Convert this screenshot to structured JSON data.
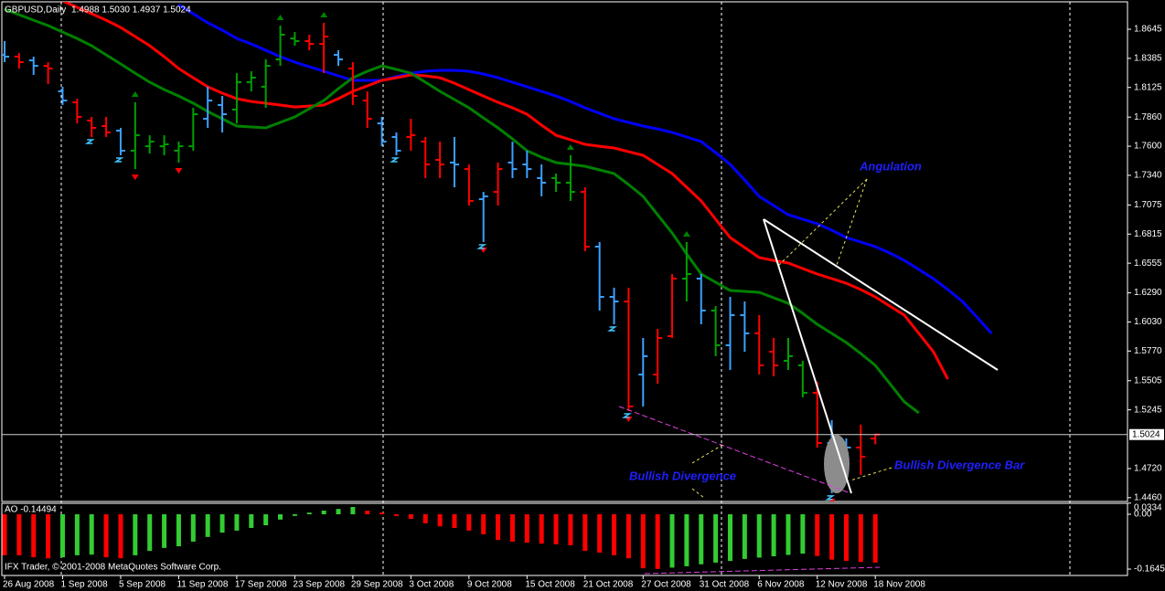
{
  "chart_data": {
    "type": "ohlc",
    "title": "GBPUSD,Daily",
    "subtitle": "1.4988 1.5030 1.4937 1.5024",
    "categories": [
      "26 Aug 2008",
      null,
      null,
      null,
      "1 Sep 2008",
      null,
      null,
      null,
      "5 Sep 2008",
      null,
      null,
      null,
      "11 Sep 2008",
      null,
      null,
      null,
      "17 Sep 2008",
      null,
      null,
      null,
      "23 Sep 2008",
      null,
      null,
      null,
      "29 Sep 2008",
      null,
      null,
      null,
      "3 Oct 2008",
      null,
      null,
      null,
      "9 Oct 2008",
      null,
      null,
      null,
      "15 Oct 2008",
      null,
      null,
      null,
      "21 Oct 2008",
      null,
      null,
      null,
      "27 Oct 2008",
      null,
      null,
      null,
      "31 Oct 2008",
      null,
      null,
      null,
      "6 Nov 2008",
      null,
      null,
      null,
      "12 Nov 2008",
      null,
      null,
      null,
      "18 Nov 2008",
      null,
      null,
      null,
      null,
      null,
      null,
      null,
      null
    ],
    "open": [
      1.8416,
      1.84,
      1.8367,
      1.8318,
      1.809,
      1.7992,
      1.7829,
      1.778,
      1.7739,
      1.756,
      1.76,
      1.76,
      1.756,
      1.76,
      1.7845,
      1.7968,
      1.7927,
      1.8172,
      1.8131,
      1.8376,
      1.8563,
      1.8539,
      1.8514,
      1.8416,
      1.8294,
      1.8008,
      1.7804,
      1.7682,
      1.7682,
      1.7641,
      1.7478,
      1.7454,
      1.7396,
      1.7127,
      1.7192,
      1.7454,
      1.7437,
      1.7315,
      1.7315,
      1.7274,
      1.7192,
      1.6703,
      1.6254,
      1.6213,
      1.556,
      1.556,
      1.5903,
      1.6417,
      1.6417,
      1.6132,
      1.5822,
      1.6091,
      1.5928,
      1.5764,
      1.5683,
      1.5642,
      1.5397,
      1.4948,
      1.4744,
      1.4908,
      1.4988,
      null,
      null,
      null,
      null,
      null,
      null,
      null,
      null
    ],
    "high": [
      1.8539,
      1.8433,
      1.84,
      1.8351,
      1.8131,
      1.8025,
      1.7862,
      1.7862,
      1.7764,
      1.7992,
      1.7698,
      1.7698,
      1.7641,
      1.7943,
      1.8131,
      1.8049,
      1.8253,
      1.827,
      1.8376,
      1.8678,
      1.862,
      1.8596,
      1.8702,
      1.8457,
      1.8351,
      1.809,
      1.7862,
      1.7723,
      1.7845,
      1.7682,
      1.7641,
      1.7682,
      1.7437,
      1.7192,
      1.7454,
      1.7641,
      1.756,
      1.7437,
      1.7356,
      1.7519,
      1.7233,
      1.6744,
      1.6336,
      1.6336,
      1.5887,
      1.5968,
      1.6458,
      1.6744,
      1.6458,
      1.6172,
      1.6254,
      1.6213,
      1.6091,
      1.5887,
      1.5887,
      1.5683,
      1.5495,
      1.5152,
      1.499,
      1.5112,
      1.503,
      null,
      null,
      null,
      null,
      null,
      null,
      null,
      null
    ],
    "low": [
      1.8351,
      1.8294,
      1.8237,
      1.8155,
      1.7968,
      1.7804,
      1.7682,
      1.7682,
      1.7519,
      1.7396,
      1.7535,
      1.7519,
      1.7454,
      1.756,
      1.7764,
      1.7723,
      1.7804,
      1.809,
      1.7943,
      1.8318,
      1.8498,
      1.8457,
      1.8253,
      1.8318,
      1.7968,
      1.7764,
      1.76,
      1.7519,
      1.756,
      1.7315,
      1.7315,
      1.7233,
      1.707,
      1.6744,
      1.707,
      1.7315,
      1.7315,
      1.7152,
      1.7192,
      1.7111,
      1.6662,
      1.6132,
      1.6009,
      1.5234,
      1.5275,
      1.5479,
      1.5887,
      1.6213,
      1.6009,
      1.5724,
      1.5601,
      1.5764,
      1.556,
      1.5544,
      1.5601,
      1.5356,
      1.4908,
      1.45,
      1.4622,
      1.4663,
      1.4937,
      null,
      null,
      null,
      null,
      null,
      null,
      null,
      null
    ],
    "close": [
      1.84,
      1.8351,
      1.8318,
      1.8294,
      1.8008,
      1.7862,
      1.7764,
      1.7723,
      1.756,
      1.7698,
      1.7641,
      1.7617,
      1.76,
      1.7886,
      1.8008,
      1.7886,
      1.8172,
      1.8212,
      1.8318,
      1.8596,
      1.8539,
      1.8514,
      1.858,
      1.8376,
      1.8049,
      1.7845,
      1.7641,
      1.756,
      1.7698,
      1.7437,
      1.7437,
      1.7437,
      1.7111,
      1.7152,
      1.7396,
      1.7396,
      1.7396,
      1.7274,
      1.7274,
      1.7192,
      1.6703,
      1.6254,
      1.6213,
      1.5275,
      1.5724,
      1.5887,
      1.6417,
      1.6458,
      1.6132,
      1.5822,
      1.6091,
      1.5928,
      1.5642,
      1.5642,
      1.5724,
      1.5397,
      1.4948,
      1.4582,
      1.4908,
      1.4826,
      1.5024,
      null,
      null,
      null,
      null,
      null,
      null,
      null,
      null
    ],
    "bar_colors": [
      "#3ca0ff",
      "#ff0000",
      "#3ca0ff",
      "#ff0000",
      "#3ca0ff",
      "#ff0000",
      "#ff0000",
      "#ff0000",
      "#3ca0ff",
      "#00a000",
      "#00a000",
      "#00a000",
      "#00a000",
      "#00a000",
      "#3ca0ff",
      "#3ca0ff",
      "#00a000",
      "#00a000",
      "#00a000",
      "#00a000",
      "#00a000",
      "#ff0000",
      "#ff0000",
      "#3ca0ff",
      "#ff0000",
      "#ff0000",
      "#3ca0ff",
      "#3ca0ff",
      "#ff0000",
      "#ff0000",
      "#ff0000",
      "#3ca0ff",
      "#ff0000",
      "#3ca0ff",
      "#ff0000",
      "#3ca0ff",
      "#3ca0ff",
      "#3ca0ff",
      "#00a000",
      "#00a000",
      "#ff0000",
      "#3ca0ff",
      "#3ca0ff",
      "#ff0000",
      "#3ca0ff",
      "#ff0000",
      "#ff0000",
      "#00a000",
      "#3ca0ff",
      "#00a000",
      "#3ca0ff",
      "#3ca0ff",
      "#ff0000",
      "#ff0000",
      "#00a000",
      "#00a000",
      "#ff0000",
      "#3ca0ff",
      "#3ca0ff",
      "#ff0000",
      "#ff0000",
      null,
      null,
      null,
      null,
      null,
      null,
      null,
      null
    ],
    "series": [
      {
        "color": "#0000ff",
        "values": [
          null,
          null,
          null,
          null,
          null,
          null,
          null,
          null,
          null,
          null,
          null,
          null,
          1.8865,
          1.8784,
          1.8702,
          1.8637,
          1.8563,
          1.8514,
          1.8457,
          1.84,
          1.8351,
          1.831,
          1.827,
          1.8229,
          1.8188,
          1.8188,
          1.8188,
          1.8221,
          1.8253,
          1.827,
          1.8278,
          1.8278,
          1.827,
          1.8245,
          1.8212,
          1.8172,
          1.8131,
          1.809,
          1.8049,
          1.8,
          1.7943,
          1.7894,
          1.7845,
          1.7813,
          1.778,
          1.7755,
          1.7723,
          1.7682,
          1.7641,
          1.7543,
          1.7437,
          1.7298,
          1.7152,
          1.707,
          1.6988,
          1.6948,
          1.6907,
          1.685,
          1.6784,
          1.6744,
          1.6703,
          1.6646,
          1.658,
          1.6499,
          1.6417,
          1.6319,
          1.6213,
          1.6074,
          1.5928
        ]
      },
      {
        "color": "#ff0000",
        "values": [
          null,
          null,
          null,
          null,
          1.8898,
          1.8841,
          1.8784,
          1.8726,
          1.8661,
          1.858,
          1.8498,
          1.84,
          1.8294,
          1.8212,
          1.8131,
          1.8074,
          1.8025,
          1.8,
          1.7984,
          1.7968,
          1.7951,
          1.7959,
          1.7968,
          1.8025,
          1.809,
          1.8139,
          1.8188,
          1.8212,
          1.8237,
          1.8229,
          1.8212,
          1.8163,
          1.8106,
          1.8049,
          1.7992,
          1.7943,
          1.7886,
          1.7788,
          1.7698,
          1.7658,
          1.7617,
          1.76,
          1.7584,
          1.7551,
          1.7519,
          1.7437,
          1.7356,
          1.7233,
          1.7111,
          1.6948,
          1.6784,
          1.6695,
          1.6605,
          1.658,
          1.6556,
          1.6507,
          1.6458,
          1.6417,
          1.6376,
          1.6319,
          1.6254,
          1.6172,
          1.6091,
          1.5928,
          1.5764,
          1.5519,
          null,
          null,
          null
        ]
      },
      {
        "color": "#008000",
        "values": [
          1.8824,
          1.8775,
          1.8726,
          1.8678,
          1.862,
          1.8563,
          1.8498,
          1.8416,
          1.8335,
          1.8253,
          1.8172,
          1.8106,
          1.8049,
          1.7984,
          1.791,
          1.7845,
          1.778,
          1.7772,
          1.7764,
          1.7813,
          1.7862,
          1.7935,
          1.8008,
          1.8115,
          1.8212,
          1.827,
          1.8318,
          1.8286,
          1.8253,
          1.8172,
          1.809,
          1.8017,
          1.7943,
          1.7853,
          1.7764,
          1.7666,
          1.756,
          1.7502,
          1.7454,
          1.7437,
          1.7421,
          1.7388,
          1.7356,
          1.7258,
          1.7152,
          1.6988,
          1.6825,
          1.6638,
          1.6458,
          1.6385,
          1.6311,
          1.6303,
          1.6295,
          1.6246,
          1.6197,
          1.6107,
          1.6009,
          1.5928,
          1.5846,
          1.5748,
          1.5642,
          1.5479,
          1.5316,
          1.5218,
          null,
          null,
          null,
          null,
          null
        ]
      }
    ],
    "fractal_up": [
      9,
      19,
      22,
      39,
      47
    ],
    "fractal_down": [
      9,
      12,
      33,
      43,
      57
    ],
    "fractal_up_color": "#008000",
    "fractal_down_color": "#ff0000",
    "signals": [
      6,
      8,
      27,
      33,
      42,
      43,
      57
    ],
    "signal_color": "#40c8ff",
    "price_line": 1.5024,
    "ylim": [
      1.4426,
      1.889
    ],
    "yticks": [
      1.8645,
      1.8385,
      1.8125,
      {
        "value": 1.786,
        "label": "1.7860"
      },
      {
        "value": 1.76,
        "label": "1.7600"
      },
      {
        "value": 1.734,
        "label": "1.7340"
      },
      1.7075,
      1.6815,
      1.6555,
      {
        "value": 1.629,
        "label": "1.6290"
      },
      {
        "value": 1.603,
        "label": "1.6030"
      },
      {
        "value": 1.577,
        "label": "1.5770"
      },
      1.5505,
      1.5245,
      {
        "value": 1.472,
        "label": "1.4720"
      },
      {
        "value": 1.446,
        "label": "1.4460"
      }
    ],
    "annotations": [
      "Angulation",
      "Bullish Divergence",
      "Bullish Divergence Bar"
    ],
    "footer": "IFX Trader, © 2001-2008 MetaQuotes Software Corp.",
    "indicator": {
      "type": "bar",
      "title": "AO -0.14494",
      "up_color": "#33cc33",
      "down_color": "#ff0000",
      "values": [
        -0.123,
        -0.123,
        -0.129,
        -0.132,
        -0.129,
        -0.123,
        -0.121,
        -0.129,
        -0.132,
        -0.123,
        -0.11,
        -0.101,
        -0.096,
        -0.082,
        -0.068,
        -0.055,
        -0.049,
        -0.041,
        -0.033,
        -0.016,
        -0.005,
        0.005,
        0.011,
        0.016,
        0.022,
        0.011,
        0.005,
        -0.005,
        -0.014,
        -0.027,
        -0.036,
        -0.041,
        -0.049,
        -0.06,
        -0.077,
        -0.082,
        -0.085,
        -0.088,
        -0.09,
        -0.093,
        -0.11,
        -0.115,
        -0.123,
        -0.132,
        -0.162,
        -0.164,
        -0.16,
        -0.156,
        -0.15,
        -0.145,
        -0.14,
        -0.134,
        -0.13,
        -0.126,
        -0.122,
        -0.118,
        -0.125,
        -0.136,
        -0.14,
        -0.143,
        -0.14494,
        null,
        null,
        null,
        null,
        null,
        null,
        null,
        null
      ],
      "ylim": [
        -0.1836,
        0.0329
      ],
      "yticks": [
        0.0334,
        {
          "value": 0,
          "label": "0.00"
        },
        -0.16453
      ]
    }
  }
}
